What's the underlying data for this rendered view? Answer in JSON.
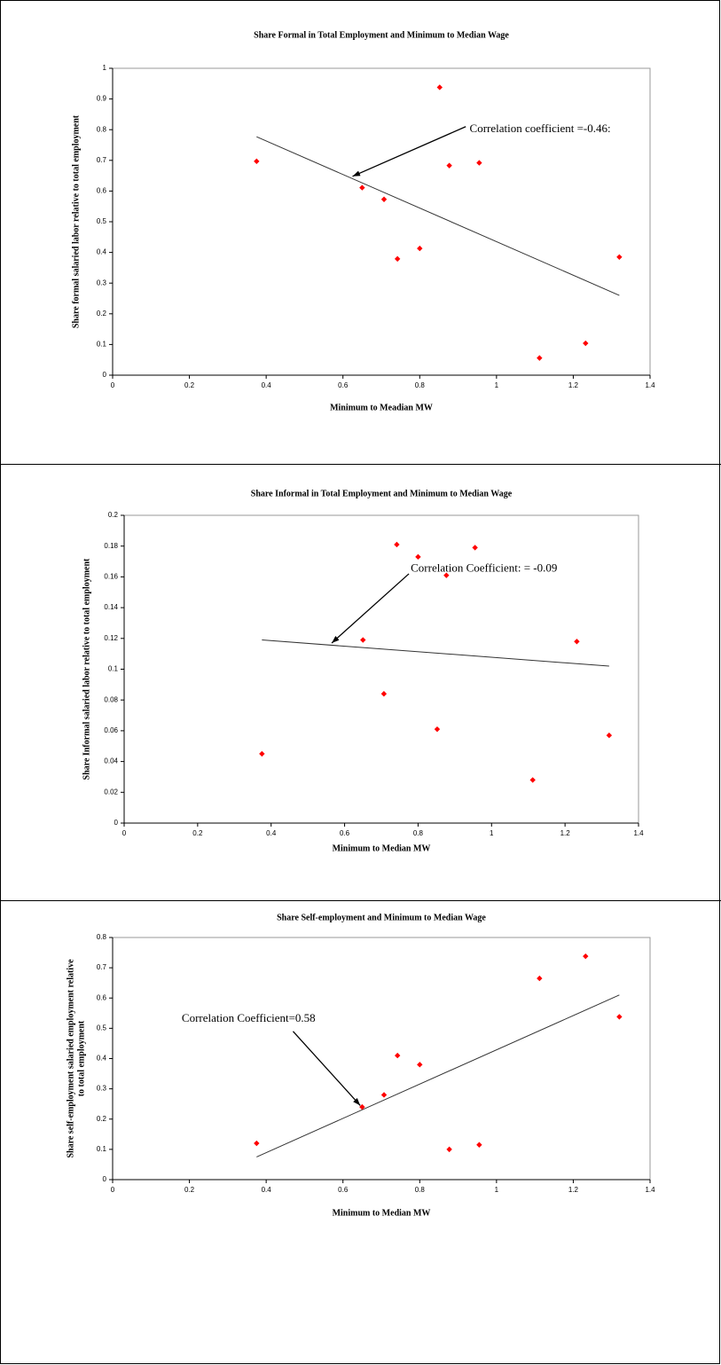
{
  "chart_data": [
    {
      "type": "scatter",
      "title": "Share Formal in Total Employment and Minimum to Median Wage",
      "x_label": "Minimum to Meadian MW",
      "y_label": [
        "Share formal salaried labor relative to total employment"
      ],
      "annotation": "Correlation coefficient =-0.46:",
      "xlim": [
        0,
        1.4
      ],
      "xticks": [
        0,
        0.2,
        0.4,
        0.6,
        0.8,
        1,
        1.2,
        1.4
      ],
      "ylim": [
        0,
        1
      ],
      "yticks": [
        0,
        0.1,
        0.2,
        0.3,
        0.4,
        0.5,
        0.6,
        0.7,
        0.8,
        0.9,
        1
      ],
      "color": "#ff0000",
      "line_color": "#333333",
      "points": {
        "x": [
          0.375,
          0.65,
          0.707,
          0.742,
          0.8,
          0.852,
          0.877,
          0.955,
          1.112,
          1.232,
          1.32
        ],
        "values": [
          0.697,
          0.611,
          0.573,
          0.379,
          0.413,
          0.938,
          0.683,
          0.692,
          0.056,
          0.104,
          0.385
        ]
      },
      "trendline": {
        "x": [
          0.375,
          1.32
        ],
        "values": [
          0.777,
          0.26
        ]
      }
    },
    {
      "type": "scatter",
      "title": "Share Informal in Total Employment and Minimum to Median Wage",
      "x_label": "Minimum to Median MW",
      "y_label": [
        "Share Informal salaried labor relative to total employment"
      ],
      "annotation": "Correlation Coefficient: = -0.09",
      "xlim": [
        0,
        1.4
      ],
      "xticks": [
        0,
        0.2,
        0.4,
        0.6,
        0.8,
        1,
        1.2,
        1.4
      ],
      "ylim": [
        0,
        0.2
      ],
      "yticks": [
        0,
        0.02,
        0.04,
        0.06,
        0.08,
        0.1,
        0.12,
        0.14,
        0.16,
        0.18,
        0.2
      ],
      "color": "#ff0000",
      "line_color": "#333333",
      "points": {
        "x": [
          0.375,
          0.65,
          0.707,
          0.742,
          0.8,
          0.852,
          0.877,
          0.955,
          1.112,
          1.232,
          1.32
        ],
        "values": [
          0.045,
          0.119,
          0.084,
          0.181,
          0.173,
          0.061,
          0.161,
          0.179,
          0.028,
          0.118,
          0.057
        ]
      },
      "trendline": {
        "x": [
          0.375,
          1.32
        ],
        "values": [
          0.119,
          0.102
        ]
      }
    },
    {
      "type": "scatter",
      "title": "Share Self-employment and Minimum to Median Wage",
      "x_label": "Minimum to Median MW",
      "y_label": [
        "Share self-employment salaried employment relative",
        "to total employment"
      ],
      "annotation": "Correlation Coefficient=0.58",
      "xlim": [
        0,
        1.4
      ],
      "xticks": [
        0,
        0.2,
        0.4,
        0.6,
        0.8,
        1,
        1.2,
        1.4
      ],
      "ylim": [
        0,
        0.8
      ],
      "yticks": [
        0,
        0.1,
        0.2,
        0.3,
        0.4,
        0.5,
        0.6,
        0.7,
        0.8
      ],
      "color": "#ff0000",
      "line_color": "#333333",
      "points": {
        "x": [
          0.375,
          0.65,
          0.707,
          0.742,
          0.8,
          0.877,
          0.955,
          1.112,
          1.232,
          1.32
        ],
        "values": [
          0.12,
          0.24,
          0.28,
          0.41,
          0.38,
          0.1,
          0.115,
          0.665,
          0.738,
          0.538
        ]
      },
      "trendline": {
        "x": [
          0.375,
          1.32
        ],
        "values": [
          0.075,
          0.61
        ]
      }
    }
  ]
}
